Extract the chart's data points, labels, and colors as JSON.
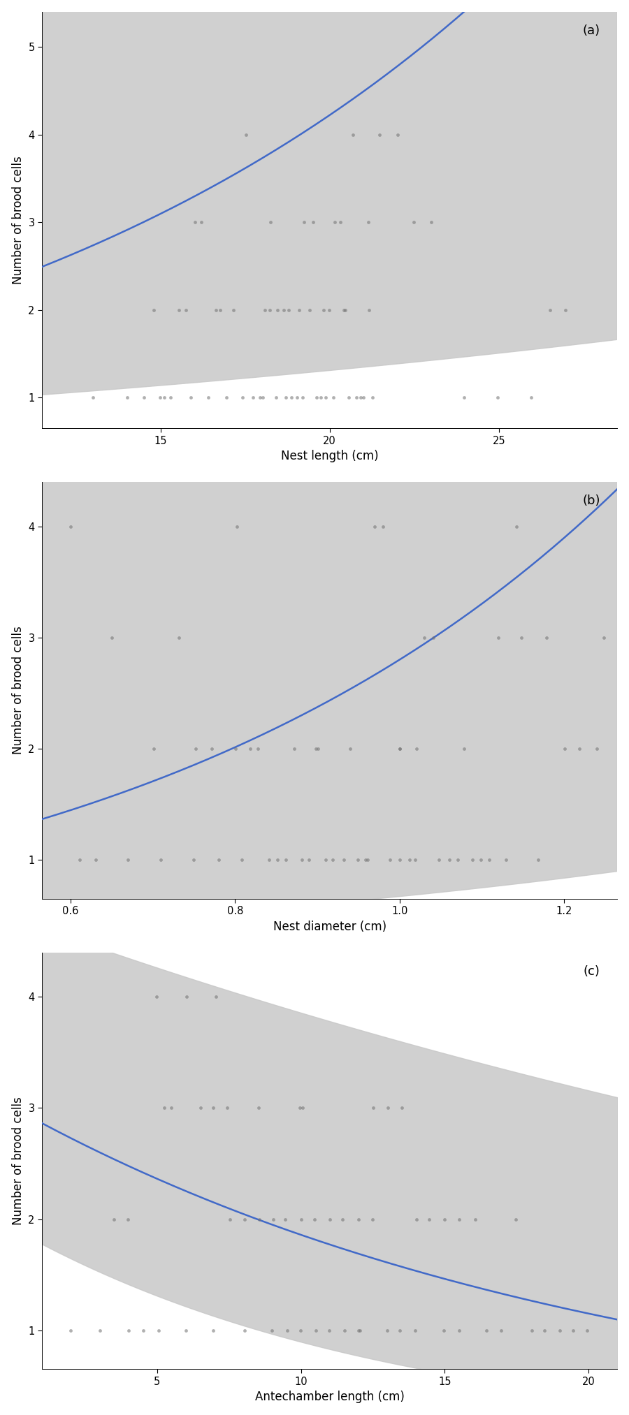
{
  "panel_a": {
    "label": "(a)",
    "xlabel": "Nest length (cm)",
    "ylabel": "Number of brood cells",
    "xlim": [
      11.5,
      28.5
    ],
    "ylim": [
      0.65,
      5.4
    ],
    "xticks": [
      15,
      20,
      25
    ],
    "yticks": [
      1,
      2,
      3,
      4,
      5
    ],
    "scatter_x": [
      13.0,
      14.0,
      14.5,
      14.8,
      15.0,
      15.1,
      15.3,
      15.5,
      15.7,
      15.9,
      16.0,
      16.2,
      16.4,
      16.6,
      16.8,
      17.0,
      17.2,
      17.4,
      17.5,
      17.7,
      17.9,
      18.0,
      18.1,
      18.2,
      18.3,
      18.4,
      18.5,
      18.6,
      18.7,
      18.8,
      18.9,
      19.0,
      19.1,
      19.2,
      19.3,
      19.4,
      19.5,
      19.6,
      19.7,
      19.8,
      19.9,
      20.0,
      20.1,
      20.2,
      20.3,
      20.4,
      20.5,
      20.6,
      20.7,
      20.8,
      20.9,
      21.0,
      21.1,
      21.2,
      21.3,
      21.5,
      22.0,
      22.5,
      23.0,
      24.0,
      25.0,
      26.0,
      26.5,
      27.0
    ],
    "scatter_y": [
      1,
      1,
      1,
      2,
      1,
      1,
      1,
      2,
      2,
      1,
      3,
      3,
      1,
      2,
      2,
      1,
      2,
      1,
      4,
      1,
      1,
      1,
      2,
      2,
      3,
      1,
      2,
      2,
      1,
      2,
      1,
      1,
      2,
      1,
      3,
      2,
      3,
      1,
      1,
      2,
      1,
      2,
      1,
      3,
      3,
      2,
      2,
      1,
      4,
      1,
      1,
      1,
      3,
      2,
      1,
      4,
      4,
      3,
      3,
      1,
      1,
      1,
      2,
      2
    ],
    "fit_log_intercept": 0.2,
    "fit_log_slope": 0.062,
    "ci_log_upper_intercept": 0.68,
    "ci_log_upper_slope": 0.096,
    "ci_log_lower_intercept": -0.29,
    "ci_log_lower_slope": 0.028
  },
  "panel_b": {
    "label": "(b)",
    "xlabel": "Nest diameter (cm)",
    "ylabel": "Number of brood cells",
    "xlim": [
      0.565,
      1.265
    ],
    "ylim": [
      0.65,
      4.4
    ],
    "xticks": [
      0.6,
      0.8,
      1.0,
      1.2
    ],
    "yticks": [
      1,
      2,
      3,
      4
    ],
    "scatter_x": [
      0.6,
      0.61,
      0.63,
      0.65,
      0.67,
      0.7,
      0.71,
      0.73,
      0.75,
      0.75,
      0.77,
      0.78,
      0.8,
      0.8,
      0.81,
      0.82,
      0.83,
      0.84,
      0.85,
      0.86,
      0.87,
      0.88,
      0.89,
      0.9,
      0.9,
      0.91,
      0.92,
      0.93,
      0.94,
      0.95,
      0.96,
      0.96,
      0.97,
      0.98,
      0.99,
      1.0,
      1.0,
      1.0,
      1.01,
      1.02,
      1.02,
      1.03,
      1.04,
      1.05,
      1.06,
      1.07,
      1.08,
      1.09,
      1.1,
      1.11,
      1.12,
      1.13,
      1.14,
      1.15,
      1.17,
      1.18,
      1.2,
      1.22,
      1.24,
      1.25
    ],
    "scatter_y": [
      4,
      1,
      1,
      3,
      1,
      2,
      1,
      3,
      2,
      1,
      2,
      1,
      2,
      4,
      1,
      2,
      2,
      1,
      1,
      1,
      2,
      1,
      1,
      2,
      2,
      1,
      1,
      1,
      2,
      1,
      1,
      1,
      4,
      4,
      1,
      2,
      2,
      1,
      1,
      2,
      1,
      3,
      3,
      1,
      1,
      1,
      2,
      1,
      1,
      1,
      3,
      1,
      4,
      3,
      1,
      3,
      2,
      2,
      2,
      3
    ],
    "fit_log_intercept": -0.62,
    "fit_log_slope": 1.65,
    "ci_log_upper_intercept": 0.25,
    "ci_log_upper_slope": 2.2,
    "ci_log_lower_intercept": -1.5,
    "ci_log_lower_slope": 1.1
  },
  "panel_c": {
    "label": "(c)",
    "xlabel": "Antechamber length (cm)",
    "ylabel": "Number of brood cells",
    "xlim": [
      1.0,
      21.0
    ],
    "ylim": [
      0.65,
      4.4
    ],
    "xticks": [
      5,
      10,
      15,
      20
    ],
    "yticks": [
      1,
      2,
      3,
      4
    ],
    "scatter_x": [
      2.0,
      3.0,
      3.5,
      4.0,
      4.0,
      4.5,
      5.0,
      5.0,
      5.2,
      5.5,
      6.0,
      6.0,
      6.5,
      7.0,
      7.0,
      7.0,
      7.5,
      7.5,
      8.0,
      8.0,
      8.5,
      8.5,
      9.0,
      9.0,
      9.5,
      9.5,
      10.0,
      10.0,
      10.0,
      10.0,
      10.5,
      10.5,
      11.0,
      11.0,
      11.5,
      11.5,
      12.0,
      12.0,
      12.0,
      12.5,
      12.5,
      13.0,
      13.0,
      13.5,
      13.5,
      14.0,
      14.0,
      14.5,
      15.0,
      15.0,
      15.5,
      15.5,
      16.0,
      16.5,
      17.0,
      17.5,
      18.0,
      18.5,
      19.0,
      19.5,
      20.0
    ],
    "scatter_y": [
      1,
      1,
      2,
      1,
      2,
      1,
      4,
      1,
      3,
      3,
      4,
      1,
      3,
      4,
      3,
      1,
      3,
      2,
      1,
      2,
      2,
      3,
      1,
      2,
      2,
      1,
      3,
      3,
      2,
      1,
      2,
      1,
      1,
      2,
      2,
      1,
      2,
      1,
      1,
      3,
      2,
      1,
      3,
      1,
      3,
      2,
      1,
      2,
      1,
      2,
      1,
      2,
      2,
      1,
      1,
      2,
      1,
      1,
      1,
      1,
      1
    ],
    "fit_log_intercept": 1.1,
    "fit_log_slope": -0.048,
    "ci_log_upper_intercept": 1.55,
    "ci_log_upper_slope": -0.02,
    "ci_log_lower_intercept": 0.65,
    "ci_log_lower_slope": -0.076
  },
  "line_color": "#4169C8",
  "ci_color": "#C8C8C8",
  "ci_alpha": 0.85,
  "scatter_color": "#707070",
  "scatter_alpha": 0.55,
  "scatter_size": 12,
  "line_width": 1.8,
  "bg_color": "#FFFFFF",
  "label_fontsize": 12,
  "tick_fontsize": 10.5,
  "panel_label_fontsize": 13
}
